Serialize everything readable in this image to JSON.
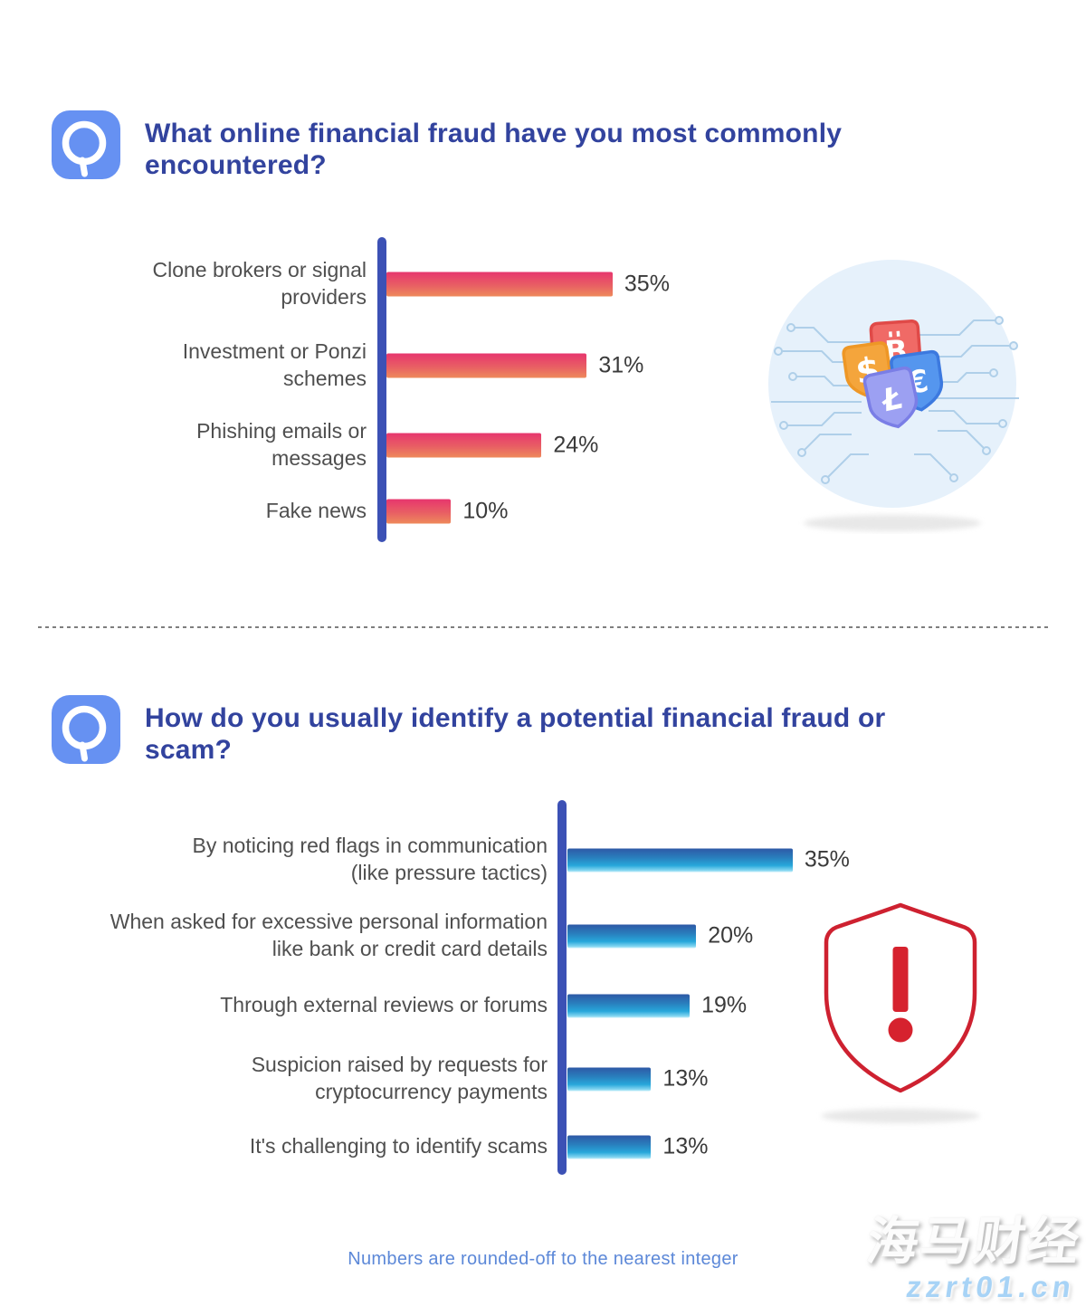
{
  "header_q1": {
    "icon": "magnifier-q-icon",
    "question": "What online financial fraud have you most commonly encountered?"
  },
  "header_q2": {
    "icon": "magnifier-q-icon",
    "question": "How do you usually identify a potential financial fraud or scam?"
  },
  "chart_data": [
    {
      "type": "bar",
      "orientation": "horizontal",
      "title": "What online financial fraud have you most commonly encountered?",
      "categories": [
        "Clone brokers or signal providers",
        "Investment or Ponzi schemes",
        "Phishing emails or messages",
        "Fake news"
      ],
      "values": [
        35,
        31,
        24,
        10
      ],
      "unit": "%",
      "value_labels": [
        "35%",
        "31%",
        "24%",
        "10%"
      ],
      "display_labels": [
        "Clone brokers or signal\nproviders",
        "Investment or Ponzi\nschemes",
        "Phishing emails or\nmessages",
        "Fake news"
      ],
      "xlim": [
        0,
        40
      ],
      "grid": false,
      "legend": "none",
      "axis_color": "#3C51B5",
      "bar_gradient": [
        "#E7366E",
        "#EE8A5B"
      ]
    },
    {
      "type": "bar",
      "orientation": "horizontal",
      "title": "How do you usually identify a potential financial fraud or scam?",
      "categories": [
        "By noticing red flags in communication (like pressure tactics)",
        "When asked for excessive personal information like bank or credit card details",
        "Through external reviews or forums",
        "Suspicion raised by requests for cryptocurrency payments",
        "It's challenging to identify scams"
      ],
      "values": [
        35,
        20,
        19,
        13,
        13
      ],
      "unit": "%",
      "value_labels": [
        "35%",
        "20%",
        "19%",
        "13%",
        "13%"
      ],
      "display_labels": [
        "By noticing red flags in communication\n(like pressure tactics)",
        "When asked for excessive personal information\nlike bank or credit card details",
        "Through external reviews or forums",
        "Suspicion raised by requests for\ncryptocurrency payments",
        "It's challenging to identify scams"
      ],
      "xlim": [
        0,
        40
      ],
      "grid": false,
      "legend": "none",
      "axis_color": "#3C51B5",
      "bar_gradient": [
        "#2E59A6",
        "#C6EFFA"
      ]
    }
  ],
  "illustrations": {
    "q1": "currency-shields-circuit",
    "q1_badges": [
      "dollar-shield",
      "bitcoin-shield",
      "euro-shield",
      "litecoin-shield"
    ],
    "q1_glyphs": {
      "dollar": "$",
      "bitcoin": "B",
      "euro": "€",
      "litecoin": "Ł"
    },
    "q2": "warning-shield-exclamation"
  },
  "footnote": "Numbers are rounded-off to the nearest integer",
  "watermark": {
    "brand": "海马财经",
    "site": "zzrt01.cn"
  },
  "colors": {
    "question_text": "#32439E",
    "q_icon_bg": "#6691F2",
    "axis": "#3C51B5",
    "bar1_top": "#E7366E",
    "bar1_bottom": "#EE8A5B",
    "bar2_top": "#2E59A6",
    "bar2_bottom": "#C6EFFA",
    "category_label": "#4F4F4F",
    "value_label": "#3A3A3A",
    "footnote": "#5C88D8",
    "warning_red": "#CE2130",
    "watermark_site": "#A7D3F6"
  }
}
